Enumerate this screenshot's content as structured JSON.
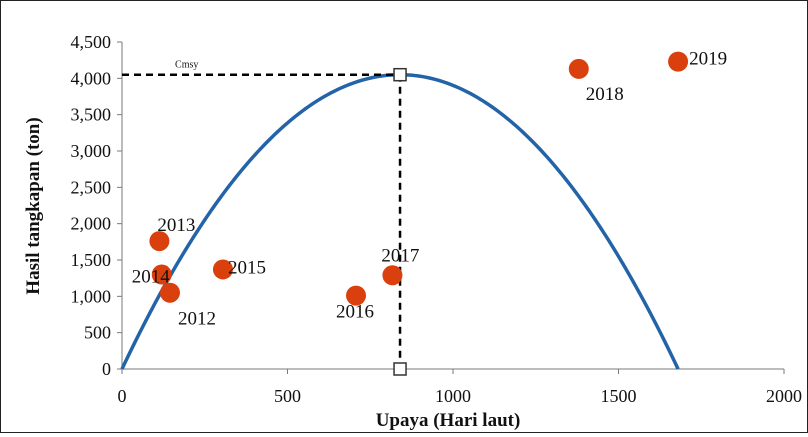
{
  "chart_data": {
    "type": "scatter",
    "xlabel": "Upaya (Hari laut)",
    "ylabel": "Hasil tangkapan (ton)",
    "xlim": [
      0,
      2000
    ],
    "ylim": [
      0,
      4500
    ],
    "x_ticks": [
      0,
      500,
      1000,
      1500,
      2000
    ],
    "y_ticks": [
      0,
      500,
      1000,
      1500,
      2000,
      2500,
      3000,
      3500,
      4000,
      4500
    ],
    "x_tick_labels": [
      "0",
      "500",
      "1000",
      "1500",
      "2000"
    ],
    "y_tick_labels": [
      "0",
      "500",
      "1,000",
      "1,500",
      "2,000",
      "2,500",
      "3,000",
      "3,500",
      "4,000",
      "4,500"
    ],
    "grid": false,
    "points": [
      {
        "label": "2012",
        "x": 145,
        "y": 1050
      },
      {
        "label": "2013",
        "x": 113,
        "y": 1760
      },
      {
        "label": "2014",
        "x": 120,
        "y": 1300
      },
      {
        "label": "2015",
        "x": 305,
        "y": 1370
      },
      {
        "label": "2016",
        "x": 707,
        "y": 1010
      },
      {
        "label": "2017",
        "x": 817,
        "y": 1290
      },
      {
        "label": "2018",
        "x": 1380,
        "y": 4130
      },
      {
        "label": "2019",
        "x": 1680,
        "y": 4230
      }
    ],
    "curve": {
      "type": "quadratic",
      "fmsy": 840,
      "cmsy": 4050
    },
    "annotation": {
      "label": "Cmsy",
      "x": 840,
      "y": 4050
    },
    "colors": {
      "points": "#d9400e",
      "curve": "#2363a8",
      "guide": "#000000"
    }
  }
}
